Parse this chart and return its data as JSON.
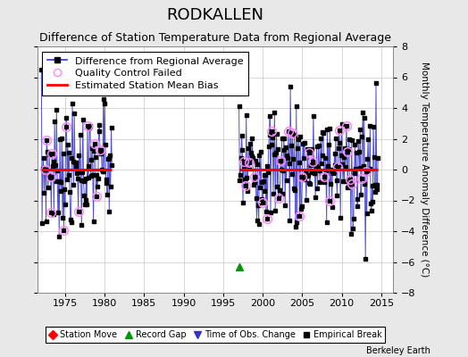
{
  "title": "RODKALLEN",
  "subtitle": "Difference of Station Temperature Data from Regional Average",
  "ylabel_right": "Monthly Temperature Anomaly Difference (°C)",
  "xlim": [
    1971.5,
    2016.5
  ],
  "ylim": [
    -8,
    8
  ],
  "yticks": [
    -8,
    -6,
    -4,
    -2,
    0,
    2,
    4,
    6,
    8
  ],
  "xticks": [
    1975,
    1980,
    1985,
    1990,
    1995,
    2000,
    2005,
    2010,
    2015
  ],
  "bias_level": 0.0,
  "period1_start": 1972.0,
  "period1_end": 1980.917,
  "period2_start": 1997.0,
  "period2_end": 2014.583,
  "record_gap_x": 1997.0,
  "record_gap_y": -6.3,
  "background_color": "#e8e8e8",
  "plot_bg_color": "#ffffff",
  "grid_color": "#d0d0d0",
  "line_color": "#3333cc",
  "dot_color": "#000000",
  "bias_color": "#ff0000",
  "qc_color": "#ff88ff",
  "title_fontsize": 13,
  "subtitle_fontsize": 9,
  "legend_fontsize": 8,
  "axis_fontsize": 8,
  "seed": 7
}
